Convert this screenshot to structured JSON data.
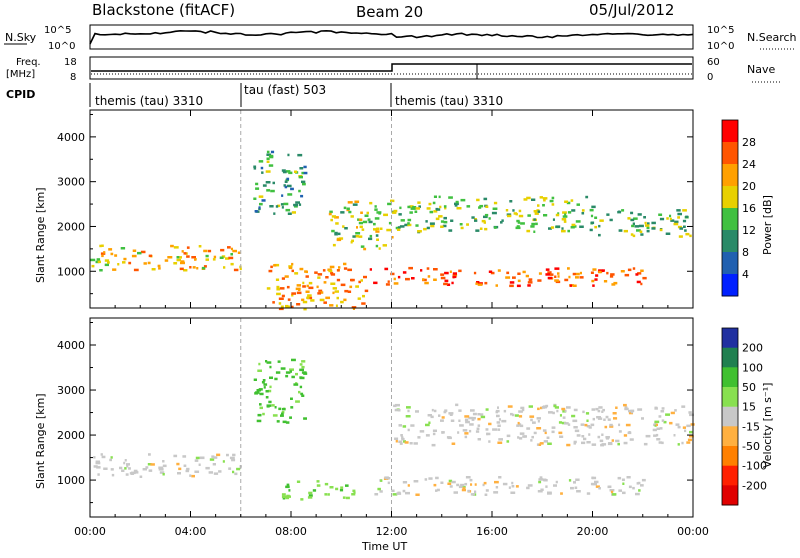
{
  "header": {
    "station": "Blackstone (fitACF)",
    "beam": "Beam 20",
    "date": "05/Jul/2012"
  },
  "noise_panel": {
    "left_label": "N.Sky",
    "left_ticks": [
      "10^5",
      "10^0"
    ],
    "right_ticks": [
      "10^5",
      "10^0"
    ],
    "right_label": "N.Search"
  },
  "freq_panel": {
    "left_label_1": "Freq.",
    "left_label_2": "[MHz]",
    "left_ticks": [
      "18",
      "8"
    ],
    "right_ticks": [
      "60",
      "0"
    ],
    "right_label": "Nave"
  },
  "cpid_panel": {
    "label": "CPID",
    "segments": [
      {
        "name": "themis (tau) 3310",
        "start_ut": 0
      },
      {
        "name": "tau (fast) 503",
        "start_ut": 6
      },
      {
        "name": "themis (tau) 3310",
        "start_ut": 12
      }
    ]
  },
  "chart_data": [
    {
      "type": "heatmap",
      "title": "Power",
      "ylabel": "Slant Range [km]",
      "xlabel": "",
      "x_range_hours": [
        0,
        24
      ],
      "ylim": [
        180,
        4600
      ],
      "y_ticks": [
        1000,
        2000,
        3000,
        4000
      ],
      "colorbar": {
        "label": "Power [dB]",
        "ticks": [
          "28",
          "24",
          "20",
          "16",
          "12",
          "8",
          "4"
        ],
        "colors": [
          "#ff0000",
          "#ff5500",
          "#ffa000",
          "#e8d000",
          "#40c040",
          "#2a8a68",
          "#2060b0",
          "#0020ff"
        ]
      },
      "features": [
        {
          "t0": 0.0,
          "t1": 6.0,
          "r0": 1050,
          "r1": 1600,
          "level": 20
        },
        {
          "t0": 6.5,
          "t1": 8.5,
          "r0": 2300,
          "r1": 3700,
          "level": 12
        },
        {
          "t0": 7.0,
          "t1": 11.0,
          "r0": 180,
          "r1": 1200,
          "level": 22
        },
        {
          "t0": 9.5,
          "t1": 12.0,
          "r0": 1500,
          "r1": 2600,
          "level": 16
        },
        {
          "t0": 11.0,
          "t1": 22.0,
          "r0": 700,
          "r1": 1100,
          "level": 26
        },
        {
          "t0": 12.0,
          "t1": 20.0,
          "r0": 1900,
          "r1": 2700,
          "level": 14
        },
        {
          "t0": 20.0,
          "t1": 24.0,
          "r0": 1800,
          "r1": 2400,
          "level": 14
        }
      ]
    },
    {
      "type": "heatmap",
      "title": "Velocity",
      "ylabel": "Slant Range [km]",
      "xlabel": "Time UT",
      "x_range_hours": [
        0,
        24
      ],
      "x_ticks": [
        "00:00",
        "04:00",
        "08:00",
        "12:00",
        "16:00",
        "20:00",
        "00:00"
      ],
      "ylim": [
        180,
        4600
      ],
      "y_ticks": [
        1000,
        2000,
        3000,
        4000
      ],
      "colorbar": {
        "label": "Velocity [m s⁻¹]",
        "ticks": [
          "200",
          "100",
          "50",
          "15",
          "-15",
          "-50",
          "-100",
          "-200"
        ],
        "colors": [
          "#2030a0",
          "#208050",
          "#40c030",
          "#88e050",
          "#c8c8c8",
          "#ffb040",
          "#ff8000",
          "#ff2000",
          "#e00000"
        ]
      },
      "features": [
        {
          "t0": 0.0,
          "t1": 6.0,
          "r0": 1100,
          "r1": 1600,
          "level": 0
        },
        {
          "t0": 6.5,
          "t1": 8.5,
          "r0": 2300,
          "r1": 3700,
          "level": 60
        },
        {
          "t0": 7.5,
          "t1": 10.5,
          "r0": 600,
          "r1": 1000,
          "level": 40
        },
        {
          "t0": 11.0,
          "t1": 22.0,
          "r0": 700,
          "r1": 1100,
          "level": 0
        },
        {
          "t0": 12.0,
          "t1": 24.0,
          "r0": 1800,
          "r1": 2700,
          "level": 0
        }
      ]
    }
  ]
}
